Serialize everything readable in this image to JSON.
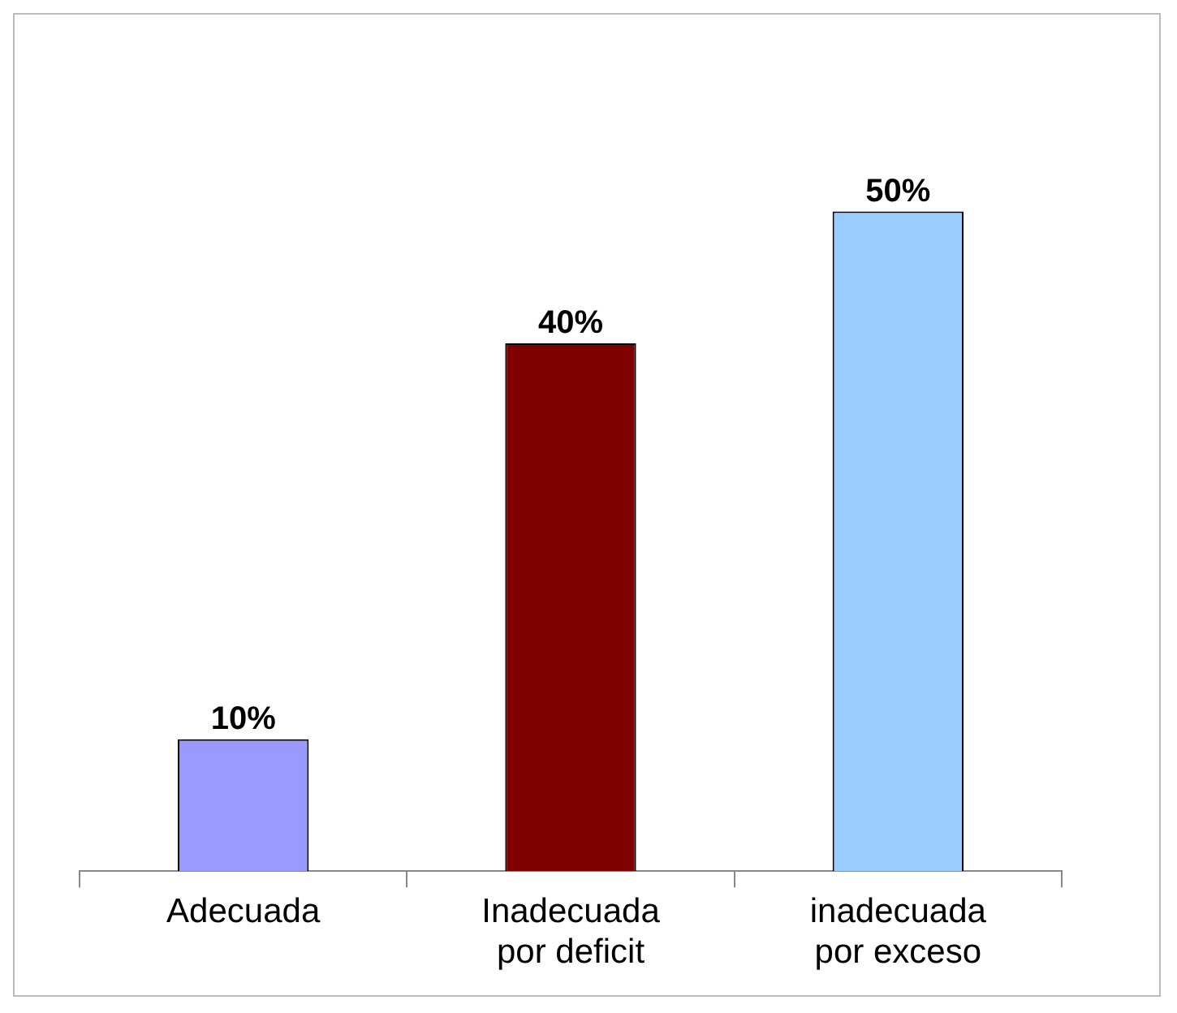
{
  "chart_data": {
    "type": "bar",
    "categories": [
      "Adecuada",
      "Inadecuada por deficit",
      "inadecuada por exceso"
    ],
    "values": [
      10,
      40,
      50
    ],
    "colors": [
      "#9999ff",
      "#800000",
      "#99ccff"
    ],
    "value_labels": [
      "10%",
      "40%",
      "50%"
    ],
    "grid": false,
    "legend": false
  }
}
